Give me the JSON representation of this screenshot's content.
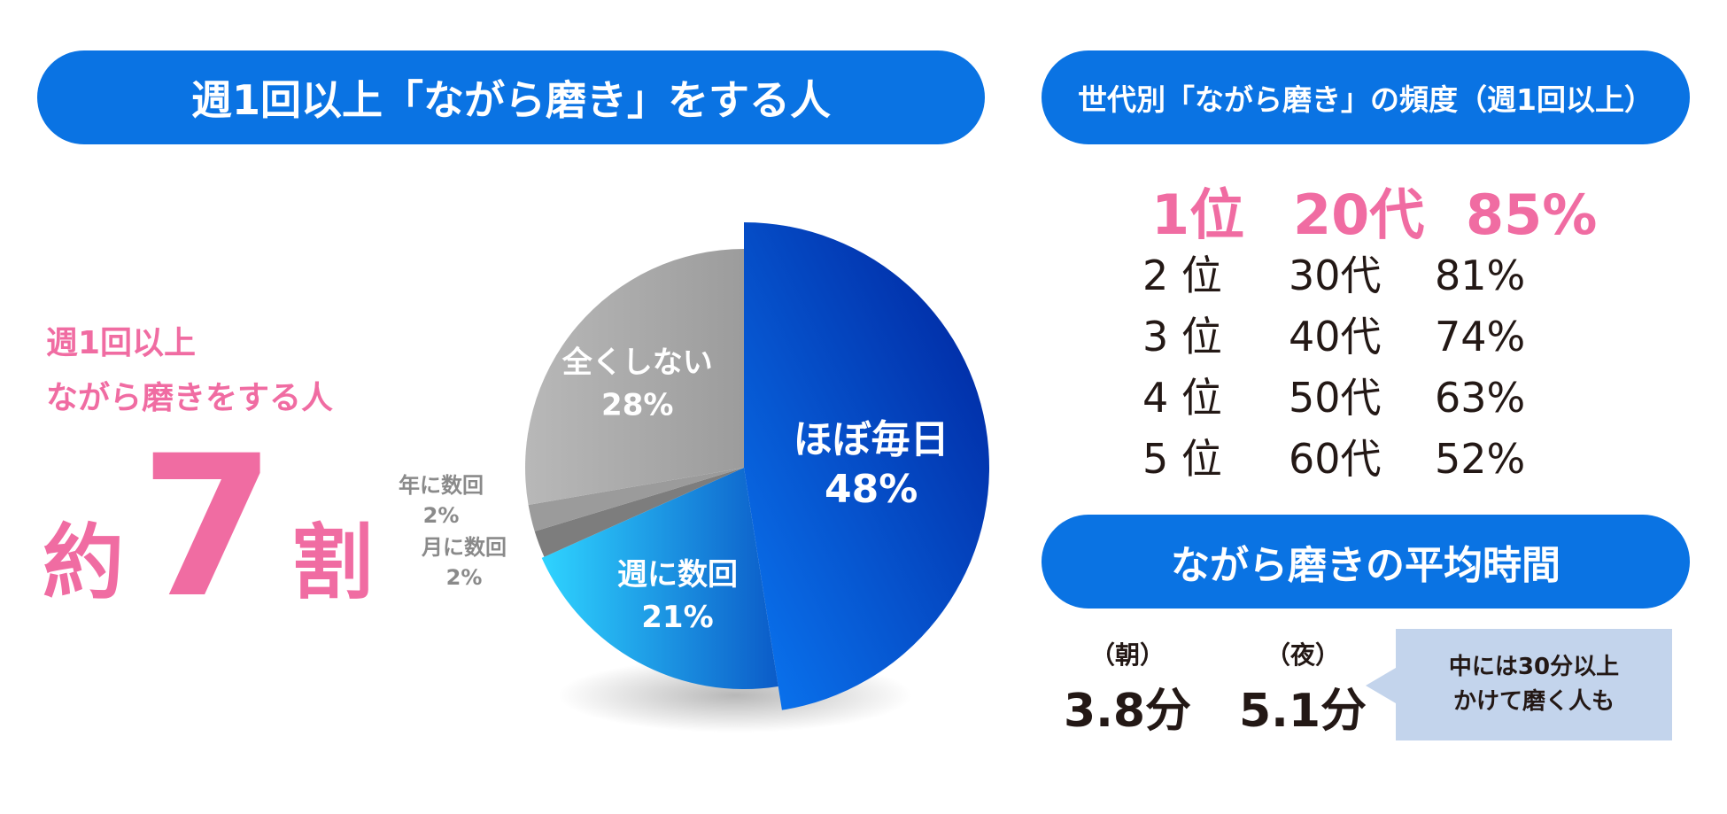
{
  "header_left": "週1回以上「ながら磨き」をする人",
  "header_right_1": "世代別「ながら磨き」の頻度（週1回以上）",
  "header_right_2": "ながら磨きの平均時間",
  "stat": {
    "line1": "週1回以上",
    "line2": "ながら磨きをする人",
    "prefix": "約",
    "number": "7",
    "suffix": "割"
  },
  "chart_data": {
    "type": "pie",
    "slices": [
      {
        "label": "ほぼ毎日",
        "value": 48,
        "value_label": "48%",
        "color": "#0a5fe0"
      },
      {
        "label": "週に数回",
        "value": 21,
        "value_label": "21%",
        "color": "#1f9be6"
      },
      {
        "label": "月に数回",
        "value": 2,
        "value_label": "2%",
        "color": "#7d7d7d"
      },
      {
        "label": "年に数回",
        "value": 2,
        "value_label": "2%",
        "color": "#9b9b9b"
      },
      {
        "label": "全くしない",
        "value": 28,
        "value_label": "28%",
        "color": "#b2b2b2"
      }
    ]
  },
  "ranking": [
    {
      "rank": "1位",
      "age": "20代",
      "pct": "85%"
    },
    {
      "rank": "2 位",
      "age": "30代",
      "pct": "81%"
    },
    {
      "rank": "3 位",
      "age": "40代",
      "pct": "74%"
    },
    {
      "rank": "4 位",
      "age": "50代",
      "pct": "63%"
    },
    {
      "rank": "5 位",
      "age": "60代",
      "pct": "52%"
    }
  ],
  "times": [
    {
      "label": "（朝）",
      "value": "3.8分"
    },
    {
      "label": "（夜）",
      "value": "5.1分"
    }
  ],
  "callout": {
    "line1": "中には30分以上",
    "line2": "かけて磨く人も"
  }
}
